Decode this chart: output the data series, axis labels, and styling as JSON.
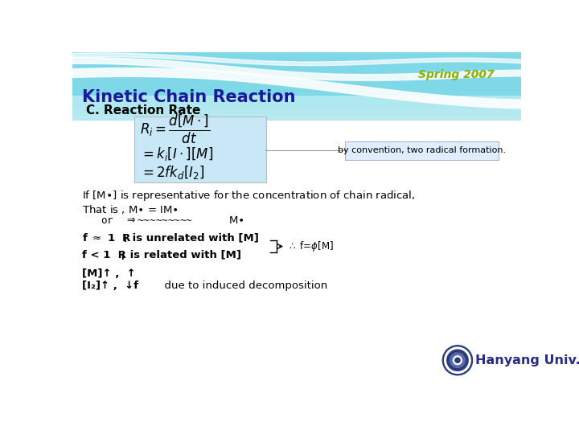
{
  "title": "Kinetic Chain Reaction",
  "subtitle": "C. Reaction Rate",
  "spring_label": "Spring 2007",
  "spring_color": "#8db000",
  "title_color": "#1a1a99",
  "subtitle_color": "#000000",
  "bg_top_color": "#7fd6e8",
  "annotation_text": "by convention, two radical formation.",
  "hanyang_text": "Hanyang Univ.",
  "hanyang_color": "#2a2a88"
}
